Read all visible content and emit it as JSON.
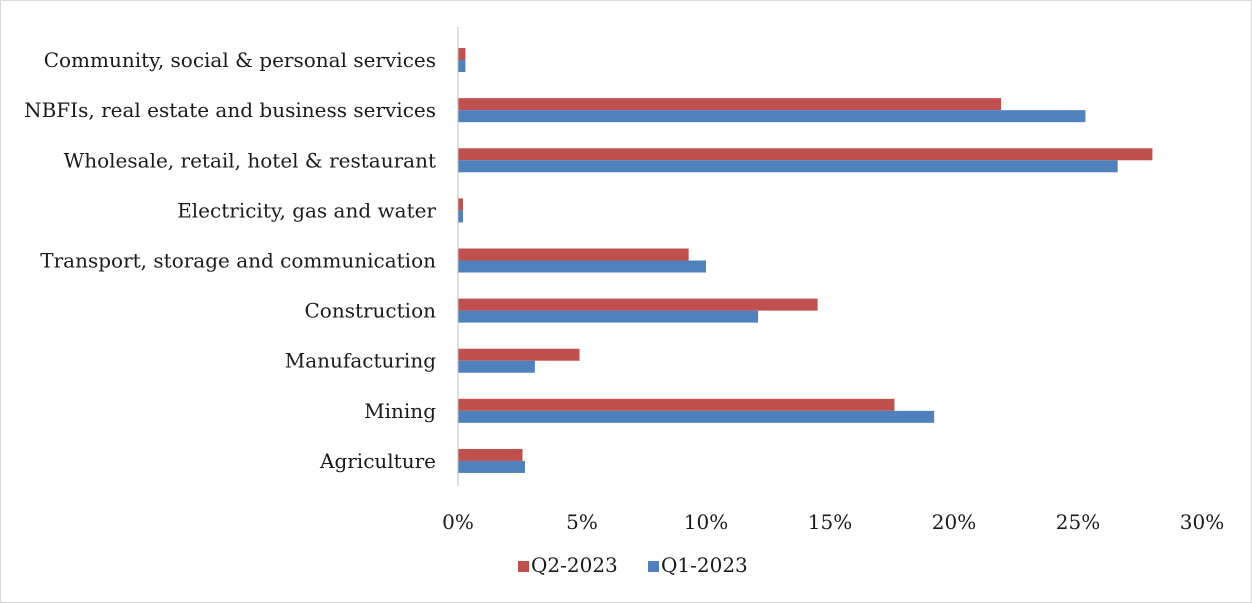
{
  "chart_data": {
    "type": "bar",
    "orientation": "horizontal",
    "title": "",
    "xlabel": "",
    "ylabel": "",
    "categories": [
      "Agriculture",
      "Mining",
      "Manufacturing",
      "Construction",
      "Transport, storage and communication",
      "Electricity, gas and water",
      "Wholesale, retail, hotel & restaurant",
      "NBFIs, real estate and business services",
      "Community, social & personal services"
    ],
    "series": [
      {
        "name": "Q2-2023",
        "color": "#c0504d",
        "values": [
          2.6,
          17.6,
          4.9,
          14.5,
          9.3,
          0.2,
          28.0,
          21.9,
          0.3
        ]
      },
      {
        "name": "Q1-2023",
        "color": "#4f81bd",
        "values": [
          2.7,
          19.2,
          3.1,
          12.1,
          10.0,
          0.2,
          26.6,
          25.3,
          0.3
        ]
      }
    ],
    "xlim": [
      0,
      30
    ],
    "x_ticks": [
      "0%",
      "5%",
      "10%",
      "15%",
      "20%",
      "25%",
      "30%"
    ],
    "grid": false,
    "legend_position": "bottom"
  }
}
